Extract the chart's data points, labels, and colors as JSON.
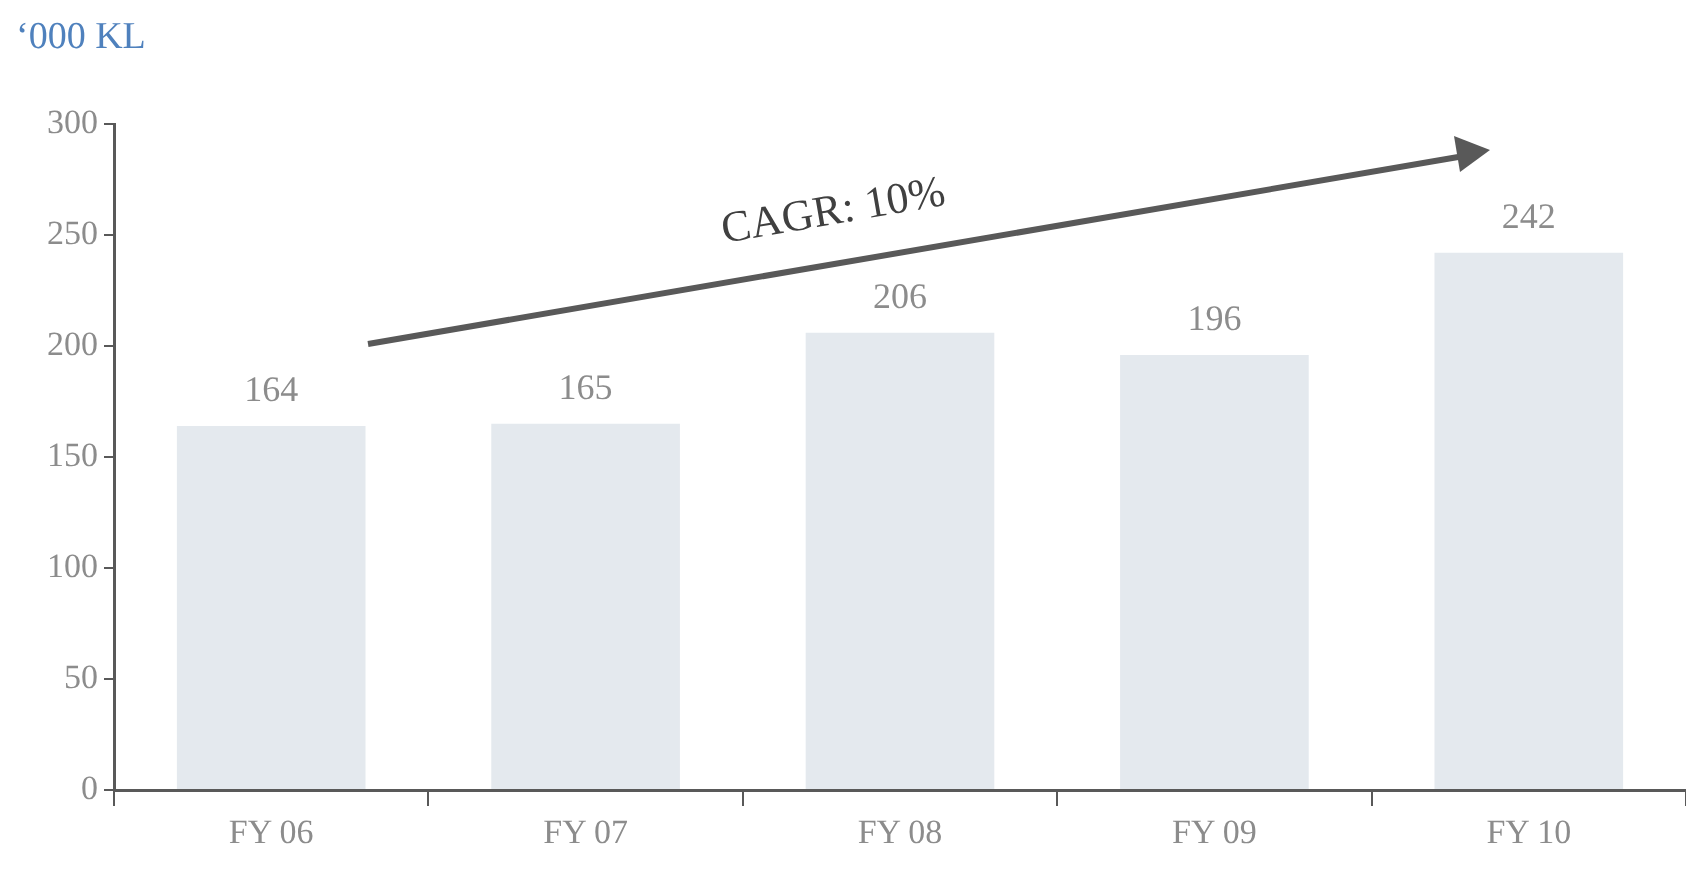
{
  "chart_data": {
    "type": "bar",
    "ylabel": "‘000 KL",
    "categories": [
      "FY 06",
      "FY 07",
      "FY 08",
      "FY 09",
      "FY 10"
    ],
    "values": [
      164,
      165,
      206,
      196,
      242
    ],
    "color": "#e4e9ee",
    "ylim": [
      0,
      300
    ],
    "yticks": [
      0,
      50,
      100,
      150,
      200,
      250,
      300
    ],
    "grid": false,
    "data_labels": true,
    "annotations": [
      "CAGR: 10%"
    ]
  }
}
